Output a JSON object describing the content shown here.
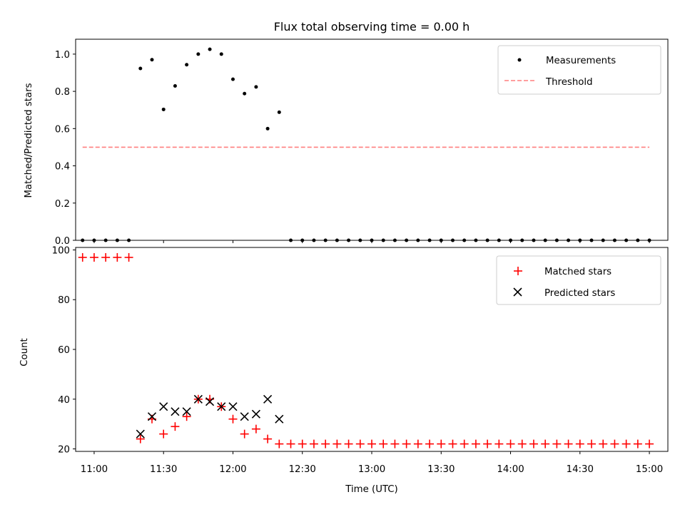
{
  "chart_data": [
    {
      "type": "scatter",
      "title": "Flux total observing time = 0.00 h",
      "ylabel": "Matched/Predicted stars",
      "xlabel": "",
      "xlim": [
        "10:52",
        "15:08"
      ],
      "ylim": [
        0,
        1.08
      ],
      "yticks": [
        0.0,
        0.2,
        0.4,
        0.6,
        0.8,
        1.0
      ],
      "ytick_labels": [
        "0.0",
        "0.2",
        "0.4",
        "0.6",
        "0.8",
        "1.0"
      ],
      "legend_position": "top-right",
      "series": [
        {
          "name": "Measurements",
          "kind": "points",
          "color": "#000000",
          "points": [
            [
              "10:55",
              0.0
            ],
            [
              "11:00",
              0.0
            ],
            [
              "11:05",
              0.0
            ],
            [
              "11:10",
              0.0
            ],
            [
              "11:15",
              0.0
            ],
            [
              "11:20",
              0.923
            ],
            [
              "11:25",
              0.97
            ],
            [
              "11:30",
              0.703
            ],
            [
              "11:35",
              0.829
            ],
            [
              "11:40",
              0.943
            ],
            [
              "11:45",
              1.0
            ],
            [
              "11:50",
              1.026
            ],
            [
              "11:55",
              1.0
            ],
            [
              "12:00",
              0.865
            ],
            [
              "12:05",
              0.788
            ],
            [
              "12:10",
              0.824
            ],
            [
              "12:15",
              0.6
            ],
            [
              "12:20",
              0.688
            ],
            [
              "12:25",
              0.0
            ],
            [
              "12:30",
              0.0
            ],
            [
              "12:35",
              0.0
            ],
            [
              "12:40",
              0.0
            ],
            [
              "12:45",
              0.0
            ],
            [
              "12:50",
              0.0
            ],
            [
              "12:55",
              0.0
            ],
            [
              "13:00",
              0.0
            ],
            [
              "13:05",
              0.0
            ],
            [
              "13:10",
              0.0
            ],
            [
              "13:15",
              0.0
            ],
            [
              "13:20",
              0.0
            ],
            [
              "13:25",
              0.0
            ],
            [
              "13:30",
              0.0
            ],
            [
              "13:35",
              0.0
            ],
            [
              "13:40",
              0.0
            ],
            [
              "13:45",
              0.0
            ],
            [
              "13:50",
              0.0
            ],
            [
              "13:55",
              0.0
            ],
            [
              "14:00",
              0.0
            ],
            [
              "14:05",
              0.0
            ],
            [
              "14:10",
              0.0
            ],
            [
              "14:15",
              0.0
            ],
            [
              "14:20",
              0.0
            ],
            [
              "14:25",
              0.0
            ],
            [
              "14:30",
              0.0
            ],
            [
              "14:35",
              0.0
            ],
            [
              "14:40",
              0.0
            ],
            [
              "14:45",
              0.0
            ],
            [
              "14:50",
              0.0
            ],
            [
              "14:55",
              0.0
            ],
            [
              "15:00",
              0.0
            ]
          ]
        },
        {
          "name": "Threshold",
          "kind": "dashed-line",
          "color": "#ff7f7f",
          "points": [
            [
              "10:55",
              0.5
            ],
            [
              "15:00",
              0.5
            ]
          ]
        }
      ]
    },
    {
      "type": "scatter",
      "title": "",
      "ylabel": "Count",
      "xlabel": "Time (UTC)",
      "xlim": [
        "10:52",
        "15:08"
      ],
      "ylim": [
        19,
        101
      ],
      "yticks": [
        20,
        40,
        60,
        80,
        100
      ],
      "ytick_labels": [
        "20",
        "40",
        "60",
        "80",
        "100"
      ],
      "xticks": [
        "11:00",
        "11:30",
        "12:00",
        "12:30",
        "13:00",
        "13:30",
        "14:00",
        "14:30",
        "15:00"
      ],
      "legend_position": "top-right",
      "series": [
        {
          "name": "Matched stars",
          "marker": "plus",
          "color": "#ff0000",
          "points": [
            [
              "10:55",
              97
            ],
            [
              "11:00",
              97
            ],
            [
              "11:05",
              97
            ],
            [
              "11:10",
              97
            ],
            [
              "11:15",
              97
            ],
            [
              "11:20",
              24
            ],
            [
              "11:25",
              32
            ],
            [
              "11:30",
              26
            ],
            [
              "11:35",
              29
            ],
            [
              "11:40",
              33
            ],
            [
              "11:45",
              40
            ],
            [
              "11:50",
              40
            ],
            [
              "11:55",
              37
            ],
            [
              "12:00",
              32
            ],
            [
              "12:05",
              26
            ],
            [
              "12:10",
              28
            ],
            [
              "12:15",
              24
            ],
            [
              "12:20",
              22
            ],
            [
              "12:25",
              22
            ],
            [
              "12:30",
              22
            ],
            [
              "12:35",
              22
            ],
            [
              "12:40",
              22
            ],
            [
              "12:45",
              22
            ],
            [
              "12:50",
              22
            ],
            [
              "12:55",
              22
            ],
            [
              "13:00",
              22
            ],
            [
              "13:05",
              22
            ],
            [
              "13:10",
              22
            ],
            [
              "13:15",
              22
            ],
            [
              "13:20",
              22
            ],
            [
              "13:25",
              22
            ],
            [
              "13:30",
              22
            ],
            [
              "13:35",
              22
            ],
            [
              "13:40",
              22
            ],
            [
              "13:45",
              22
            ],
            [
              "13:50",
              22
            ],
            [
              "13:55",
              22
            ],
            [
              "14:00",
              22
            ],
            [
              "14:05",
              22
            ],
            [
              "14:10",
              22
            ],
            [
              "14:15",
              22
            ],
            [
              "14:20",
              22
            ],
            [
              "14:25",
              22
            ],
            [
              "14:30",
              22
            ],
            [
              "14:35",
              22
            ],
            [
              "14:40",
              22
            ],
            [
              "14:45",
              22
            ],
            [
              "14:50",
              22
            ],
            [
              "14:55",
              22
            ],
            [
              "15:00",
              22
            ]
          ]
        },
        {
          "name": "Predicted stars",
          "marker": "x",
          "color": "#000000",
          "points": [
            [
              "11:20",
              26
            ],
            [
              "11:25",
              33
            ],
            [
              "11:30",
              37
            ],
            [
              "11:35",
              35
            ],
            [
              "11:40",
              35
            ],
            [
              "11:45",
              40
            ],
            [
              "11:50",
              39
            ],
            [
              "11:55",
              37
            ],
            [
              "12:00",
              37
            ],
            [
              "12:05",
              33
            ],
            [
              "12:10",
              34
            ],
            [
              "12:15",
              40
            ],
            [
              "12:20",
              32
            ]
          ]
        }
      ]
    }
  ]
}
